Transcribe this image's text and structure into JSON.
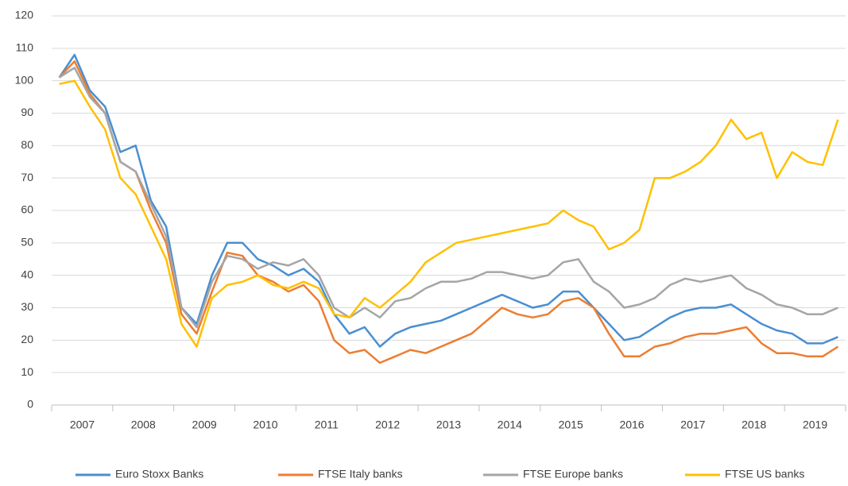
{
  "chart_data": {
    "type": "line",
    "x": [
      "2007",
      null,
      null,
      null,
      "2008",
      null,
      null,
      null,
      "2009",
      null,
      null,
      null,
      "2010",
      null,
      null,
      null,
      "2011",
      null,
      null,
      null,
      "2012",
      null,
      null,
      null,
      "2013",
      null,
      null,
      null,
      "2014",
      null,
      null,
      null,
      "2015",
      null,
      null,
      null,
      "2016",
      null,
      null,
      null,
      "2017",
      null,
      null,
      null,
      "2018",
      null,
      null,
      null,
      "2019",
      null,
      null,
      null
    ],
    "series": [
      {
        "name": "Euro Stoxx Banks",
        "color": "#4a8fd0",
        "values": [
          101,
          108,
          97,
          92,
          78,
          80,
          63,
          55,
          30,
          25,
          40,
          50,
          50,
          45,
          43,
          40,
          42,
          38,
          28,
          22,
          24,
          18,
          22,
          24,
          25,
          26,
          28,
          30,
          32,
          34,
          32,
          30,
          31,
          35,
          35,
          30,
          25,
          20,
          21,
          24,
          27,
          29,
          30,
          30,
          31,
          28,
          25,
          23,
          22,
          19,
          19,
          21
        ]
      },
      {
        "name": "FTSE Italy banks",
        "color": "#ed7d31",
        "values": [
          101,
          106,
          96,
          90,
          75,
          72,
          60,
          50,
          28,
          22,
          35,
          47,
          46,
          40,
          38,
          35,
          37,
          32,
          20,
          16,
          17,
          13,
          15,
          17,
          16,
          18,
          20,
          22,
          26,
          30,
          28,
          27,
          28,
          32,
          33,
          30,
          22,
          15,
          15,
          18,
          19,
          21,
          22,
          22,
          23,
          24,
          19,
          16,
          16,
          15,
          15,
          18
        ]
      },
      {
        "name": "FTSE Europe banks",
        "color": "#a5a5a5",
        "values": [
          101,
          104,
          95,
          90,
          75,
          72,
          62,
          52,
          30,
          24,
          38,
          46,
          45,
          42,
          44,
          43,
          45,
          40,
          30,
          27,
          30,
          27,
          32,
          33,
          36,
          38,
          38,
          39,
          41,
          41,
          40,
          39,
          40,
          44,
          45,
          38,
          35,
          30,
          31,
          33,
          37,
          39,
          38,
          39,
          40,
          36,
          34,
          31,
          30,
          28,
          28,
          30
        ]
      },
      {
        "name": "FTSE US banks",
        "color": "#ffc000",
        "values": [
          99,
          100,
          92,
          85,
          70,
          65,
          55,
          45,
          25,
          18,
          33,
          37,
          38,
          40,
          37,
          36,
          38,
          36,
          28,
          27,
          33,
          30,
          34,
          38,
          44,
          47,
          50,
          51,
          52,
          53,
          54,
          55,
          56,
          60,
          57,
          55,
          48,
          50,
          54,
          70,
          70,
          72,
          75,
          80,
          88,
          82,
          84,
          70,
          78,
          75,
          74,
          88
        ]
      }
    ],
    "ylim": [
      0,
      120
    ],
    "yticks": [
      0,
      10,
      20,
      30,
      40,
      50,
      60,
      70,
      80,
      90,
      100,
      110,
      120
    ],
    "grid": true,
    "legend": "bottom"
  }
}
